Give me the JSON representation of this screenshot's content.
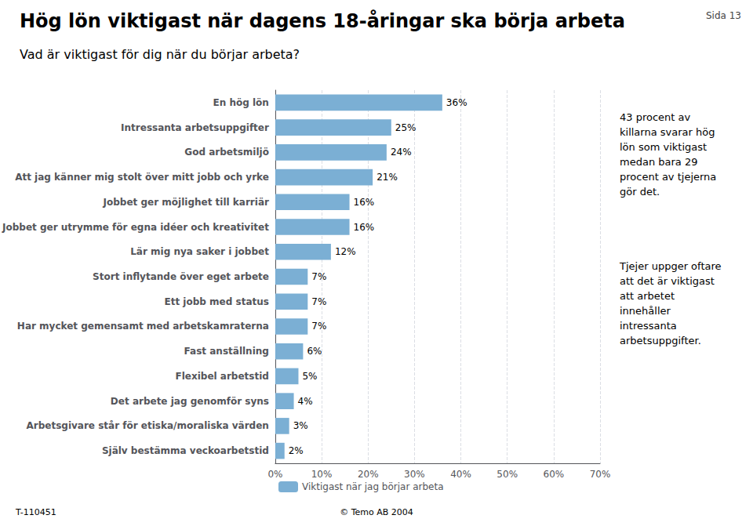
{
  "chart_data": {
    "type": "bar",
    "orientation": "horizontal",
    "title": "Hög lön viktigast när dagens 18-åringar ska börja arbeta",
    "subtitle": "Vad är viktigast för dig när du börjar arbeta?",
    "categories": [
      "En hög lön",
      "Intressanta arbetsuppgifter",
      "God arbetsmiljö",
      "Att jag känner mig stolt över mitt jobb och yrke",
      "Jobbet ger möjlighet till karriär",
      "Jobbet ger utrymme för egna idéer och kreativitet",
      "Lär mig nya saker i jobbet",
      "Stort inflytande över eget arbete",
      "Ett jobb med status",
      "Har mycket gemensamt med arbetskamraterna",
      "Fast anställning",
      "Flexibel arbetstid",
      "Det arbete jag genomför syns",
      "Arbetsgivare står för etiska/moraliska värden",
      "Själv bestämma veckoarbetstid"
    ],
    "series": [
      {
        "name": "Viktigast när jag börjar arbeta",
        "color": "#7BAFD4",
        "values": [
          36,
          25,
          24,
          21,
          16,
          16,
          12,
          7,
          7,
          7,
          6,
          5,
          4,
          3,
          2
        ],
        "value_labels": [
          "36%",
          "25%",
          "24%",
          "21%",
          "16%",
          "16%",
          "12%",
          "7%",
          "7%",
          "7%",
          "6%",
          "5%",
          "4%",
          "3%",
          "2%"
        ]
      }
    ],
    "data_labels": true,
    "xlim": [
      0,
      70
    ],
    "xticks": [
      {
        "value": 0,
        "label": "0%"
      },
      {
        "value": 10,
        "label": "10%"
      },
      {
        "value": 20,
        "label": "20%"
      },
      {
        "value": 30,
        "label": "30%"
      },
      {
        "value": 40,
        "label": "40%"
      },
      {
        "value": 50,
        "label": "50%"
      },
      {
        "value": 60,
        "label": "60%"
      },
      {
        "value": 70,
        "label": "70%"
      }
    ],
    "grid": true,
    "legend": "bottom",
    "annotations": [
      "43 procent av\nkillarna svarar hög\nlön som viktigast\nmedan bara 29\nprocent av tjejerna\ngör det.",
      "Tjejer uppger oftare\natt det är viktigast\natt arbetet\ninnehåller\nintressanta\narbetsuppgifter."
    ],
    "footer": [
      "T-110451",
      "© Temo AB 2004"
    ],
    "page_label": "Sida 13"
  }
}
